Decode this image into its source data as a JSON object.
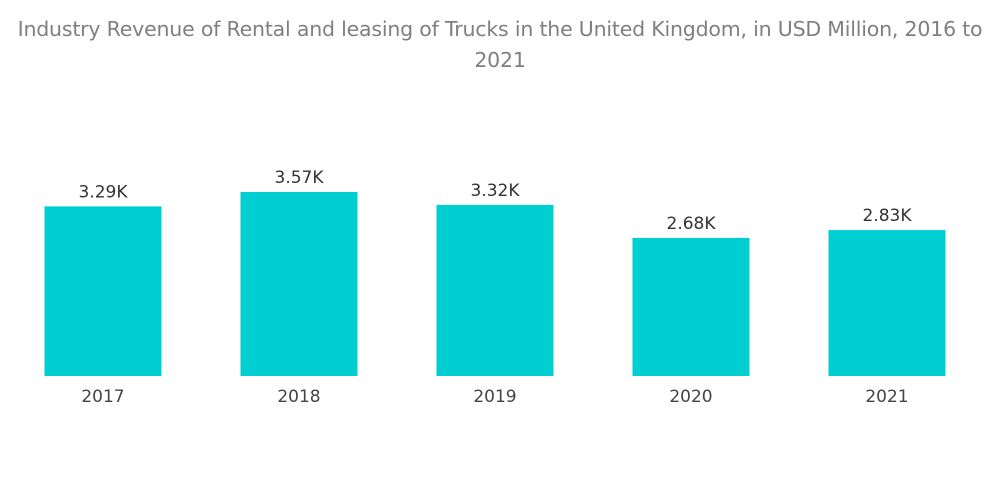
{
  "chart_data": {
    "type": "bar",
    "title": "Industry Revenue of Rental and leasing of Trucks in the United Kingdom, in USD Million, 2016 to 2021",
    "xlabel": "",
    "ylabel": "",
    "categories": [
      "2017",
      "2018",
      "2019",
      "2020",
      "2021"
    ],
    "values": [
      3290,
      3570,
      3320,
      2680,
      2830
    ],
    "data_labels": [
      "3.29K",
      "3.57K",
      "3.32K",
      "2.68K",
      "2.83K"
    ],
    "ylim": [
      0,
      3570
    ],
    "grid": false,
    "legend": "none",
    "bar_color": "#00ced1"
  }
}
